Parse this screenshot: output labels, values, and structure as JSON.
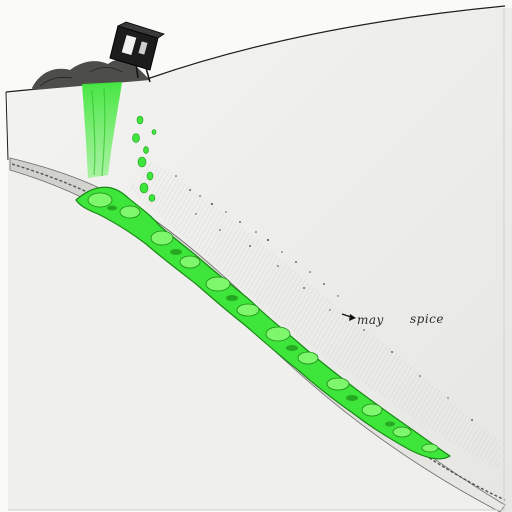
{
  "labels": {
    "may": "may",
    "spice": "spice"
  },
  "colors": {
    "paper": "#fafaf8",
    "slope_shade": "#dcdcda",
    "ink": "#1e1e1e",
    "ooze": "#3ee53a",
    "ooze_dark": "#1f9a1c",
    "ooze_light": "#7ff76c"
  },
  "icons": {
    "container": "tipped-barrel-icon",
    "arrow": "small-arrow-icon"
  }
}
